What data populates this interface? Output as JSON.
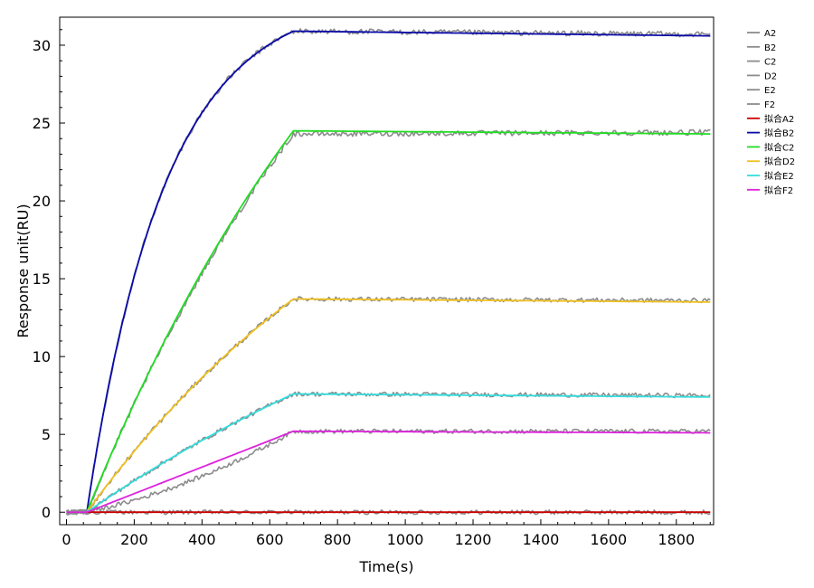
{
  "chart_data": {
    "type": "line",
    "xlabel": "Time(s)",
    "ylabel": "Response unit(RU)",
    "xlim": [
      -20,
      1910
    ],
    "ylim": [
      -0.8,
      31.8
    ],
    "xticks": [
      0,
      200,
      400,
      600,
      800,
      1000,
      1200,
      1400,
      1600,
      1800
    ],
    "yticks": [
      0,
      5,
      10,
      15,
      20,
      25,
      30
    ],
    "grid": false,
    "legend_position": "top-right outside",
    "association_start": 60,
    "association_end": 670,
    "x_end": 1900,
    "series": [
      {
        "name": "A2",
        "kind": "measured",
        "color": "#8c8c8c",
        "plateau": 0,
        "end": 0,
        "shape": "exp",
        "tau": 1
      },
      {
        "name": "B2",
        "kind": "measured",
        "color": "#8c8c8c",
        "plateau": 30.9,
        "end": 30.7,
        "shape": "exp",
        "tau": 230
      },
      {
        "name": "C2",
        "kind": "measured",
        "color": "#8c8c8c",
        "plateau": 24.3,
        "end": 24.4,
        "shape": "exp",
        "tau": 1000
      },
      {
        "name": "D2",
        "kind": "measured",
        "color": "#8c8c8c",
        "plateau": 13.7,
        "end": 13.6,
        "shape": "exp",
        "tau": 1000
      },
      {
        "name": "E2",
        "kind": "measured",
        "color": "#8c8c8c",
        "plateau": 7.6,
        "end": 7.5,
        "shape": "exp",
        "tau": 1500
      },
      {
        "name": "F2",
        "kind": "measured",
        "color": "#8c8c8c",
        "plateau": 5.2,
        "end": 5.2,
        "shape": "sigmoid",
        "tau": 1
      },
      {
        "name": "拟合A2",
        "kind": "fit",
        "color": "#cc0000",
        "plateau": 0,
        "end": 0,
        "shape": "linear",
        "tau": 1
      },
      {
        "name": "拟合B2",
        "kind": "fit",
        "color": "#0a0aa8",
        "plateau": 30.9,
        "end": 30.6,
        "shape": "exp",
        "tau": 230
      },
      {
        "name": "拟合C2",
        "kind": "fit",
        "color": "#22dd22",
        "plateau": 24.5,
        "end": 24.3,
        "shape": "exp",
        "tau": 1000
      },
      {
        "name": "拟合D2",
        "kind": "fit",
        "color": "#f0c020",
        "plateau": 13.7,
        "end": 13.5,
        "shape": "exp",
        "tau": 1000
      },
      {
        "name": "拟合E2",
        "kind": "fit",
        "color": "#33dddd",
        "plateau": 7.6,
        "end": 7.4,
        "shape": "exp",
        "tau": 1500
      },
      {
        "name": "拟合F2",
        "kind": "fit",
        "color": "#dd22dd",
        "plateau": 5.2,
        "end": 5.1,
        "shape": "linear",
        "tau": 1
      }
    ]
  }
}
